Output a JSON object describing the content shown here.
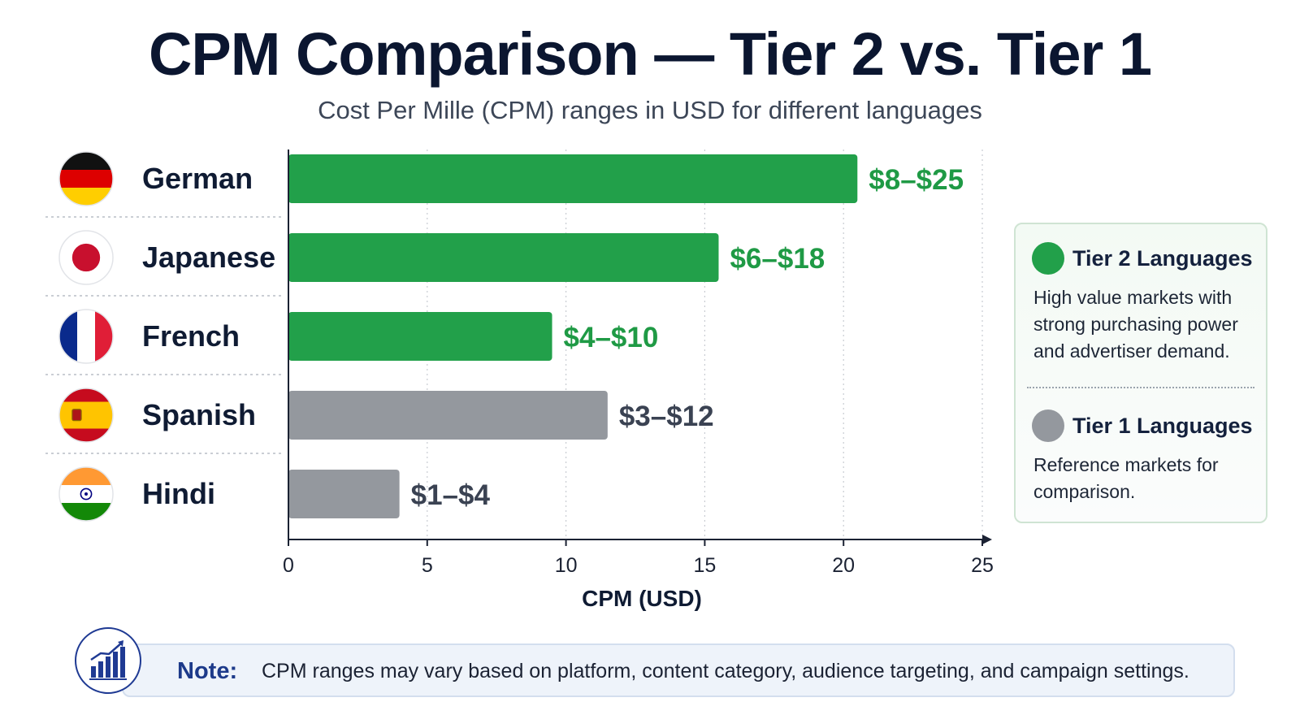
{
  "title": "CPM Comparison — Tier 2 vs. Tier 1",
  "subtitle": "Cost Per Mille (CPM) ranges in USD for different languages",
  "chart_data": {
    "type": "bar",
    "orientation": "horizontal",
    "xlabel": "CPM (USD)",
    "xlim": [
      0,
      25
    ],
    "xticks": [
      0,
      5,
      10,
      15,
      20,
      25
    ],
    "grid": "vertical dotted",
    "categories": [
      "German",
      "Japanese",
      "French",
      "Spanish",
      "Hindi"
    ],
    "values": [
      20.5,
      15.5,
      9.5,
      11.5,
      4
    ],
    "range_labels": [
      "$8–$25",
      "$6–$18",
      "$4–$10",
      "$3–$12",
      "$1–$4"
    ],
    "tiers": [
      "Tier 2",
      "Tier 2",
      "Tier 2",
      "Tier 1",
      "Tier 1"
    ],
    "flags": [
      "germany-flag-icon",
      "japan-flag-icon",
      "france-flag-icon",
      "spain-flag-icon",
      "india-flag-icon"
    ],
    "colors": {
      "Tier 2": "#22a04a",
      "Tier 1": "#94989e"
    },
    "label_colors": {
      "Tier 2": "#1f9a45",
      "Tier 1": "#3a4252"
    },
    "legend_placement": "right"
  },
  "legend": {
    "tier2": {
      "title": "Tier 2 Languages",
      "description": "High value markets with strong purchasing power and advertiser demand.",
      "color": "#22a04a"
    },
    "tier1": {
      "title": "Tier 1 Languages",
      "description": "Reference markets for comparison.",
      "color": "#94989e"
    }
  },
  "note": {
    "label": "Note:",
    "text": "CPM ranges may vary based on platform, content category, audience targeting, and campaign settings.",
    "icon": "bar-chart-icon"
  }
}
